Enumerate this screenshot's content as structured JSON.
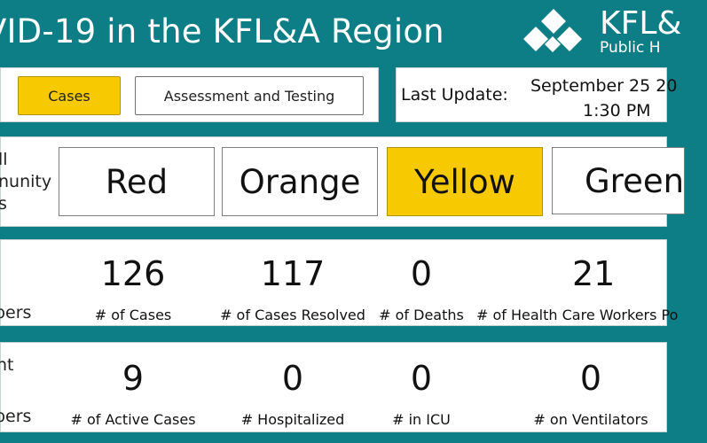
{
  "header": {
    "title": "VID-19 in the KFL&A Region",
    "logo_name": "KFL&",
    "logo_sub": "Public H",
    "logo_icon": "diamond-cluster-icon"
  },
  "tabs": [
    {
      "label": "Cases",
      "active": true
    },
    {
      "label": "Assessment and Testing",
      "active": false
    }
  ],
  "last_update": {
    "label": "Last Update:",
    "date": "September 25 20",
    "time": "1:30 PM"
  },
  "levels": {
    "side_label": "ll\nnunity\ns",
    "items": [
      {
        "label": "Red",
        "active": false
      },
      {
        "label": "Orange",
        "active": false
      },
      {
        "label": "Yellow",
        "active": true
      },
      {
        "label": "Green",
        "active": false
      }
    ]
  },
  "summary": {
    "side_label": "bers",
    "stats": [
      {
        "value": "126",
        "label": "# of Cases"
      },
      {
        "value": "117",
        "label": "# of Cases Resolved"
      },
      {
        "value": "0",
        "label": "# of Deaths"
      },
      {
        "value": "21",
        "label": "# of Health Care Workers Po"
      }
    ]
  },
  "current": {
    "side_label_top": "nt",
    "side_label_bottom": "bers",
    "stats": [
      {
        "value": "9",
        "label": "# of Active Cases"
      },
      {
        "value": "0",
        "label": "# Hospitalized"
      },
      {
        "value": "0",
        "label": "# in ICU"
      },
      {
        "value": "0",
        "label": "# on Ventilators"
      }
    ]
  },
  "colors": {
    "background": "#0e7e86",
    "active_yellow": "#f6c900",
    "panel": "#ffffff"
  }
}
